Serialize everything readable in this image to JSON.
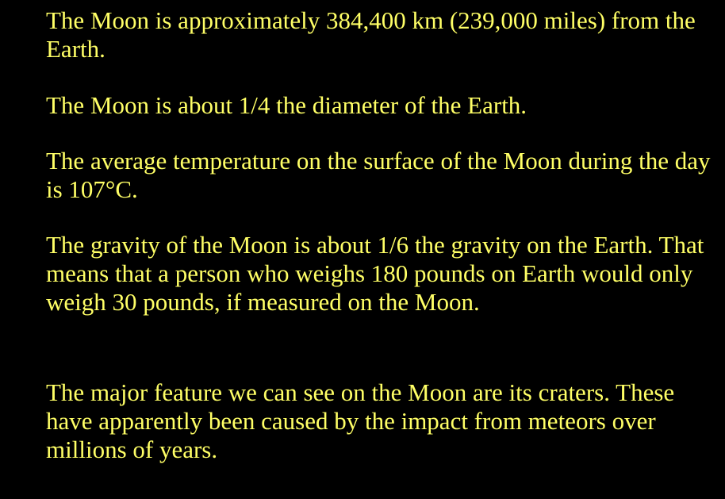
{
  "colors": {
    "background": "#000000",
    "text": "#ffff66",
    "bullet": "#ffff66"
  },
  "bullet_icon": "crescent-moon-icon",
  "bullets": [
    {
      "text": "The Moon is approximately 384,400 km (239,000 miles) from the Earth."
    },
    {
      "text": "The Moon is about 1/4 the diameter of the Earth."
    },
    {
      "text": "The average temperature on the surface of the Moon during the day is 107°C."
    },
    {
      "text": "The gravity of the Moon is about 1/6 the gravity on the Earth. That means that a person who weighs 180 pounds on Earth would only weigh 30 pounds, if measured on the Moon."
    },
    {
      "text": "The major feature we can see on the Moon are its craters. These have apparently been caused by the impact from meteors over millions of years."
    }
  ]
}
